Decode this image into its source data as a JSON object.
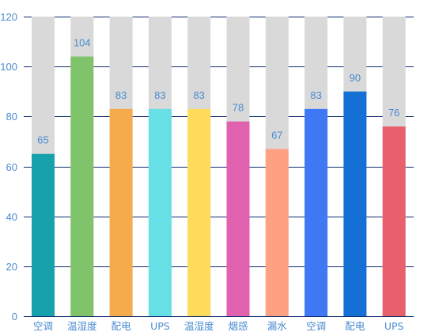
{
  "chart_data": {
    "type": "bar",
    "categories": [
      "空调",
      "温湿度",
      "配电",
      "UPS",
      "温湿度",
      "烟感",
      "漏水",
      "空调",
      "配电",
      "UPS"
    ],
    "values": [
      65,
      104,
      83,
      83,
      83,
      78,
      67,
      83,
      90,
      76
    ],
    "background_values": [
      120,
      120,
      120,
      120,
      120,
      120,
      120,
      120,
      120,
      120
    ],
    "bar_colors": [
      "#17a1ad",
      "#7fc46b",
      "#f5ab4b",
      "#66e0e5",
      "#ffdb5c",
      "#e062ae",
      "#fea183",
      "#3f78f5",
      "#1470d4",
      "#e8606c"
    ],
    "background_bar_color": "#d9d9d9",
    "ylim": [
      0,
      120
    ],
    "yticks": [
      0,
      20,
      40,
      60,
      80,
      100,
      120
    ],
    "grid": true,
    "grid_color": "#0e2a6e",
    "axis_label_color": "#4a8bd0",
    "data_label_color": "#4a8bd0",
    "category_label_color": "#4a8bd0",
    "title": "",
    "xlabel": "",
    "ylabel": ""
  }
}
